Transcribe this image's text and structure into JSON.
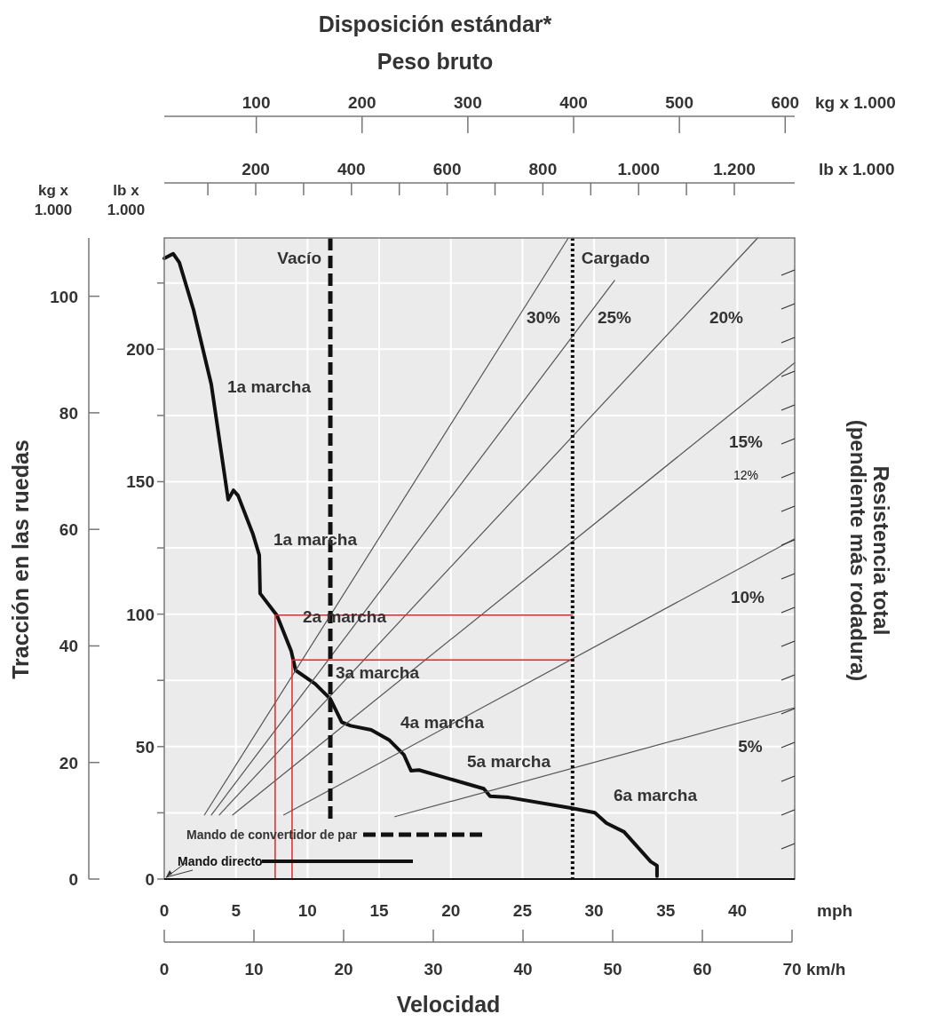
{
  "chart_data": {
    "type": "line",
    "title": "Disposición estándar*",
    "subtitle": "Peso bruto",
    "xlabel": "mph",
    "x2label": "kg x 1.000",
    "ylabel": "kg x 1.000",
    "y2label": "lb x 1.000",
    "xlim": [
      0,
      44
    ],
    "xticks": [
      0,
      5,
      10,
      15,
      20,
      25,
      30,
      35,
      40
    ],
    "x2lim": [
      13,
      609
    ],
    "x2ticks": [
      100,
      200,
      300,
      400,
      500,
      600
    ],
    "ylim": [
      0,
      110
    ],
    "yticks": [
      0,
      20,
      40,
      60,
      80,
      100
    ],
    "y2lim": [
      0,
      242
    ],
    "y2ticks": [
      0,
      {
        "value": 25,
        "label": null
      },
      50,
      {
        "value": 75,
        "label": null
      },
      100,
      {
        "value": 125,
        "label": null
      },
      150,
      {
        "value": 175,
        "label": null
      },
      200,
      {
        "value": 225,
        "label": null
      }
    ],
    "grid": true,
    "legend": "bottom left",
    "series": [
      {
        "name": "Mando directo",
        "color": "#111111",
        "line_style": "solid",
        "x": [
          0,
          0.62,
          1.05,
          2.04,
          3.28,
          4.46,
          4.83,
          5.15,
          6.2,
          6.63,
          6.69,
          7.87,
          8.86,
          9.17,
          10.53,
          11.59,
          12.39,
          13.01,
          14.44,
          15.68,
          16.73,
          17.22,
          17.78,
          22.3,
          22.74,
          24.04,
          28.38,
          30.05,
          30.86,
          32.09,
          33.95,
          34.39,
          34.39
        ],
        "values": [
          106.5,
          107.3,
          105.8,
          97.7,
          84.9,
          65.1,
          66.7,
          65.8,
          59.1,
          55.6,
          49.0,
          45.2,
          39.1,
          35.8,
          33.5,
          30.9,
          26.9,
          26.3,
          25.6,
          23.9,
          21.3,
          18.6,
          18.7,
          15.5,
          14.2,
          14.0,
          12.2,
          11.4,
          9.6,
          8.1,
          3.0,
          2.3,
          0.5
        ]
      },
      {
        "name": "30%",
        "color": "#555555",
        "axis": "x2",
        "x": [
          51,
          395
        ],
        "values": [
          11,
          110
        ]
      },
      {
        "name": "25%",
        "color": "#555555",
        "axis": "x2",
        "x": [
          57.5,
          438.7
        ],
        "values": [
          11,
          102.7
        ]
      },
      {
        "name": "20%",
        "color": "#555555",
        "axis": "x2",
        "x": [
          65,
          574
        ],
        "values": [
          11,
          110
        ]
      },
      {
        "name": "15%",
        "color": "#555555",
        "axis": "x2",
        "x": [
          77.7,
          609
        ],
        "values": [
          11,
          88.6
        ]
      },
      {
        "name": "10%",
        "color": "#555555",
        "axis": "x2",
        "x": [
          126,
          609
        ],
        "values": [
          11,
          58.4
        ]
      },
      {
        "name": "5%",
        "color": "#555555",
        "axis": "x2",
        "x": [
          231,
          609
        ],
        "values": [
          10.7,
          29.4
        ]
      },
      {
        "color": "#e5262a",
        "x": [
          28.5,
          7.74,
          7.74
        ],
        "values": [
          45.3,
          45.3,
          0
        ]
      },
      {
        "color": "#e5262a",
        "x": [
          28.5,
          8.92,
          8.92
        ],
        "values": [
          37.6,
          37.6,
          0
        ]
      }
    ],
    "ref_lines": [
      {
        "axis": "x2",
        "value": 170,
        "label": "Vacío",
        "line_style": "dashed",
        "color": "#111111"
      },
      {
        "axis": "x2",
        "value": 399,
        "label": "Cargado",
        "line_style": "dotted",
        "color": "#111111"
      }
    ],
    "annotations": [
      "Tracción en las ruedas",
      "Velocidad",
      "Resistencia total (pendiente más rodadura)",
      "12%",
      "km/h",
      "lb x 1.000",
      "0",
      "10",
      "20",
      "30",
      "40",
      "50",
      "60",
      "70",
      "200",
      "400",
      "600",
      "800",
      "1.000",
      "1.200",
      "1a marcha",
      "1a marcha",
      "2a marcha",
      "3a marcha",
      "4a marcha",
      "5a marcha",
      "6a marcha",
      "Mando de convertidor de par"
    ]
  }
}
